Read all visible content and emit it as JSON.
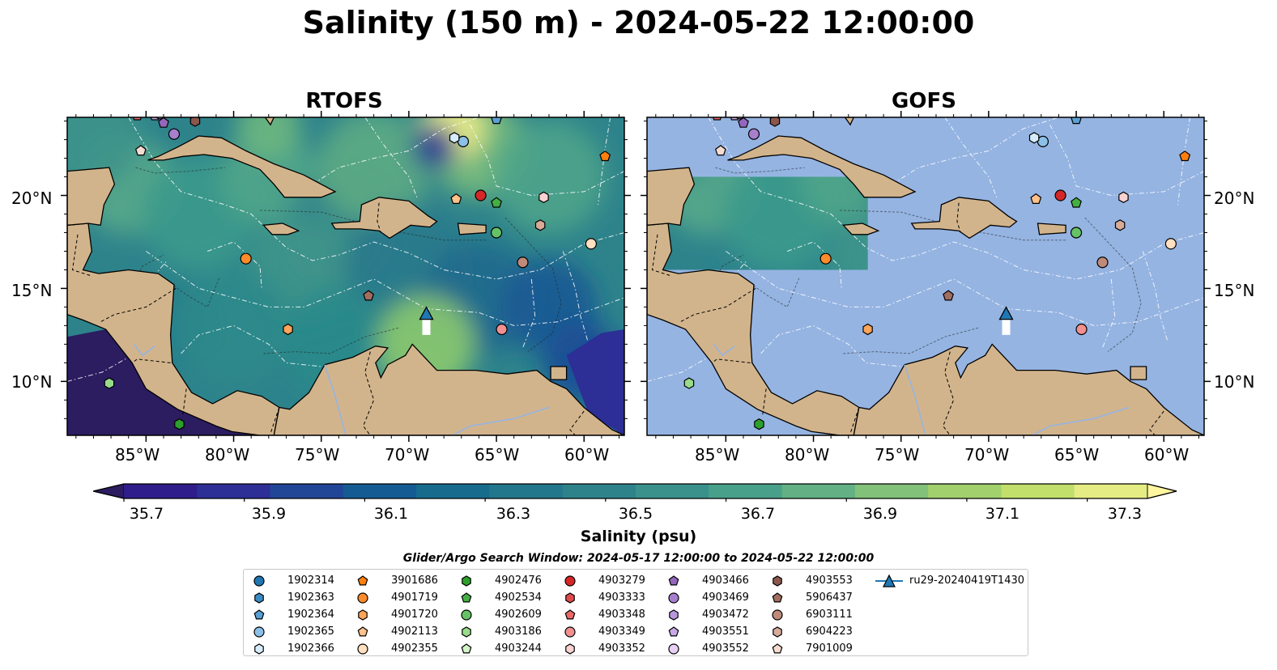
{
  "title": "Salinity (150 m) - 2024-05-22 12:00:00",
  "panels": [
    {
      "title": "RTOFS"
    },
    {
      "title": "GOFS"
    }
  ],
  "axes": {
    "lon_labels": [
      "85°W",
      "80°W",
      "75°W",
      "70°W",
      "65°W",
      "60°W"
    ],
    "lat_labels": [
      "20°N",
      "15°N",
      "10°N"
    ],
    "lon_range": [
      -89.5,
      -57.7
    ],
    "lat_range": [
      7.1,
      24.2
    ]
  },
  "colorbar": {
    "label": "Salinity (psu)",
    "tick_labels": [
      "35.7",
      "35.9",
      "36.1",
      "36.3",
      "36.5",
      "36.7",
      "36.9",
      "37.1",
      "37.3"
    ],
    "range": [
      35.7,
      37.4
    ],
    "extend": "both",
    "colors": [
      "#2c1c60",
      "#2e1d8a",
      "#2d2e96",
      "#214597",
      "#155b93",
      "#176c8d",
      "#23778c",
      "#2e838b",
      "#3a908b",
      "#49a08a",
      "#62b084",
      "#82c179",
      "#a1d06c",
      "#c2df6b",
      "#e4ec83",
      "#fff6a0"
    ]
  },
  "colors": {
    "ocean_plain": "#95b4e2",
    "land": "#d2b48c",
    "field_high": "#8bca6e",
    "field_mid": "#2e838b",
    "field_low": "#1b4c96"
  },
  "legend": {
    "title": "Glider/Argo Search Window: 2024-05-17 12:00:00 to 2024-05-22 12:00:00",
    "items": [
      {
        "id": "1902314",
        "marker": "circle",
        "color": "#1f77b4"
      },
      {
        "id": "1902363",
        "marker": "hexagon",
        "color": "#3a8cc4"
      },
      {
        "id": "1902364",
        "marker": "pentagon",
        "color": "#5aa0d4"
      },
      {
        "id": "1902365",
        "marker": "circle",
        "color": "#8cc0e8"
      },
      {
        "id": "1902366",
        "marker": "hexagon",
        "color": "#d6ecfa"
      },
      {
        "id": "3901686",
        "marker": "pentagon",
        "color": "#ff7f0e"
      },
      {
        "id": "4901719",
        "marker": "circle",
        "color": "#ff8c2a"
      },
      {
        "id": "4901720",
        "marker": "hexagon",
        "color": "#ffa55a"
      },
      {
        "id": "4902113",
        "marker": "pentagon",
        "color": "#ffc28a"
      },
      {
        "id": "4902355",
        "marker": "circle",
        "color": "#ffe0c0"
      },
      {
        "id": "4902476",
        "marker": "hexagon",
        "color": "#2ca02c"
      },
      {
        "id": "4902534",
        "marker": "pentagon",
        "color": "#44b044"
      },
      {
        "id": "4902609",
        "marker": "circle",
        "color": "#66c266"
      },
      {
        "id": "4903186",
        "marker": "hexagon",
        "color": "#98dc8a"
      },
      {
        "id": "4903244",
        "marker": "pentagon",
        "color": "#d2f5c8"
      },
      {
        "id": "4903279",
        "marker": "circle",
        "color": "#d62728"
      },
      {
        "id": "4903333",
        "marker": "hexagon",
        "color": "#e04a4a"
      },
      {
        "id": "4903348",
        "marker": "pentagon",
        "color": "#ea6a6a"
      },
      {
        "id": "4903349",
        "marker": "circle",
        "color": "#f29090"
      },
      {
        "id": "4903352",
        "marker": "hexagon",
        "color": "#fad2d2"
      },
      {
        "id": "4903466",
        "marker": "pentagon",
        "color": "#9467bd"
      },
      {
        "id": "4903469",
        "marker": "circle",
        "color": "#a77fcd"
      },
      {
        "id": "4903472",
        "marker": "hexagon",
        "color": "#b897da"
      },
      {
        "id": "4903551",
        "marker": "pentagon",
        "color": "#caa8e6"
      },
      {
        "id": "4903552",
        "marker": "circle",
        "color": "#e6d0f4"
      },
      {
        "id": "4903553",
        "marker": "hexagon",
        "color": "#8c564b"
      },
      {
        "id": "5906437",
        "marker": "pentagon",
        "color": "#a26e60"
      },
      {
        "id": "6903111",
        "marker": "circle",
        "color": "#c08a7a"
      },
      {
        "id": "6904223",
        "marker": "hexagon",
        "color": "#d8aa98"
      },
      {
        "id": "7901009",
        "marker": "pentagon",
        "color": "#f6dcd0"
      },
      {
        "id": "ru29-20240419T1430",
        "marker": "triangle",
        "color": "#1f77b4"
      }
    ]
  },
  "observations": [
    {
      "id": "3901686",
      "lon": -58.8,
      "lat": 22.1
    },
    {
      "id": "4902113",
      "lon": -67.3,
      "lat": 19.8
    },
    {
      "id": "4903279",
      "lon": -65.9,
      "lat": 20.0
    },
    {
      "id": "4902534",
      "lon": -65.0,
      "lat": 19.6
    },
    {
      "id": "4903352",
      "lon": -62.3,
      "lat": 19.9
    },
    {
      "id": "6904223",
      "lon": -62.5,
      "lat": 18.4
    },
    {
      "id": "4902609",
      "lon": -65.0,
      "lat": 18.0
    },
    {
      "id": "4902355",
      "lon": -59.6,
      "lat": 17.4
    },
    {
      "id": "6903111",
      "lon": -63.5,
      "lat": 16.4
    },
    {
      "id": "4901719",
      "lon": -79.3,
      "lat": 16.6
    },
    {
      "id": "5906437",
      "lon": -72.3,
      "lat": 14.6
    },
    {
      "id": "4901720",
      "lon": -76.9,
      "lat": 12.8
    },
    {
      "id": "4903349",
      "lon": -64.7,
      "lat": 12.8
    },
    {
      "id": "4903186",
      "lon": -87.1,
      "lat": 9.9
    },
    {
      "id": "4902476",
      "lon": -83.1,
      "lat": 7.7
    },
    {
      "id": "1902365",
      "lon": -66.9,
      "lat": 22.9
    },
    {
      "id": "1902366",
      "lon": -67.4,
      "lat": 23.1
    },
    {
      "id": "1902364",
      "lon": -65.0,
      "lat": 24.1
    },
    {
      "id": "7901009",
      "lon": -85.3,
      "lat": 22.4
    },
    {
      "id": "4903469",
      "lon": -83.4,
      "lat": 23.3
    },
    {
      "id": "4903466",
      "lon": -84.0,
      "lat": 23.9
    },
    {
      "id": "4903553",
      "lon": -82.2,
      "lat": 24.0
    },
    {
      "id": "4903551",
      "lon": -84.5,
      "lat": 24.3
    },
    {
      "id": "4903552",
      "lon": -84.2,
      "lat": 24.4
    },
    {
      "id": "4903348",
      "lon": -85.5,
      "lat": 24.3
    }
  ],
  "glider": {
    "id": "ru29-20240419T1430",
    "lon": -69.0,
    "lat": 13.6,
    "track_end_lat": 12.5
  }
}
